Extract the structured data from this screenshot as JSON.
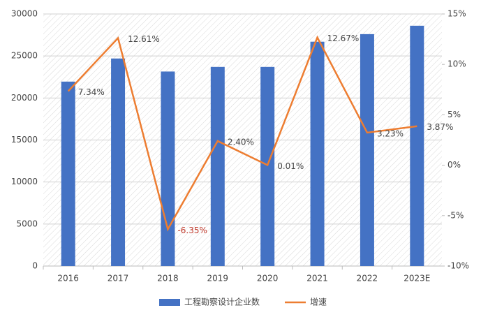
{
  "chart_data": {
    "type": "bar_line",
    "categories": [
      "2016",
      "2017",
      "2018",
      "2019",
      "2020",
      "2021",
      "2022",
      "2023E"
    ],
    "series": [
      {
        "name": "工程勘察设计企业数",
        "type": "bar",
        "color": "#4472c4",
        "values": [
          21950,
          24700,
          23150,
          23700,
          23700,
          26700,
          27600,
          28600
        ]
      },
      {
        "name": "增速",
        "type": "line",
        "axis": "y2",
        "color": "#ed7d31",
        "values": [
          7.34,
          12.61,
          -6.35,
          2.4,
          0.01,
          12.67,
          3.23,
          3.87
        ],
        "value_labels": [
          "7.34%",
          "12.61%",
          "-6.35%",
          "2.40%",
          "0.01%",
          "12.67%",
          "3.23%",
          "3.87%"
        ]
      }
    ],
    "ylim": [
      0,
      30000
    ],
    "yticks": [
      0,
      5000,
      10000,
      15000,
      20000,
      25000,
      30000
    ],
    "y2lim": [
      -10,
      15
    ],
    "y2ticks": [
      {
        "value": -10,
        "label": "-10%"
      },
      {
        "value": -5,
        "label": "-5%"
      },
      {
        "value": 0,
        "label": "0%"
      },
      {
        "value": 5,
        "label": "5%"
      },
      {
        "value": 10,
        "label": "10%"
      },
      {
        "value": 15,
        "label": "15%"
      }
    ],
    "grid": true,
    "legend": "bottom"
  }
}
